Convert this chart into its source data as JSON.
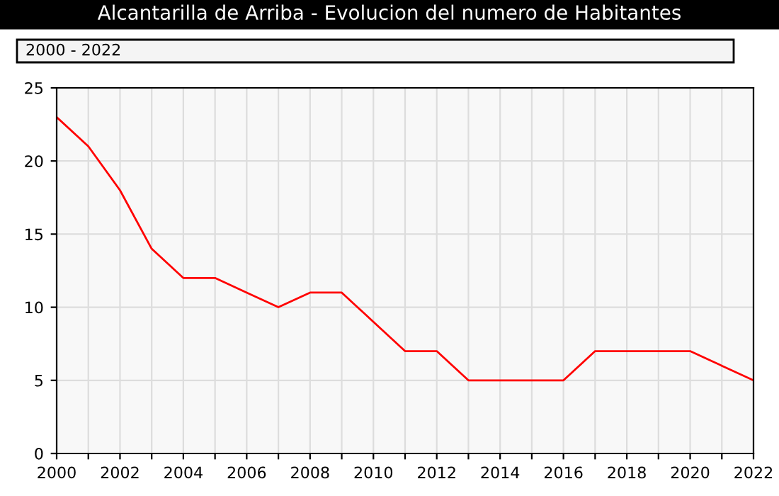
{
  "chart_data": {
    "type": "line",
    "title": "Alcantarilla de Arriba - Evolucion del numero de Habitantes",
    "annotations": [
      "2000 - 2022"
    ],
    "x": [
      2000,
      2001,
      2002,
      2003,
      2004,
      2005,
      2006,
      2007,
      2008,
      2009,
      2010,
      2011,
      2012,
      2013,
      2014,
      2015,
      2016,
      2017,
      2018,
      2019,
      2020,
      2021,
      2022
    ],
    "series": [
      {
        "color": "#ff0000",
        "values": [
          23,
          21,
          18,
          14,
          12,
          12,
          11,
          10,
          11,
          11,
          9,
          7,
          7,
          5,
          5,
          5,
          5,
          7,
          7,
          7,
          7,
          6,
          5
        ]
      }
    ],
    "xlim": [
      2000,
      2022
    ],
    "xticks": [
      2000,
      {
        "value": 2001,
        "label": null
      },
      2002,
      {
        "value": 2003,
        "label": null
      },
      2004,
      {
        "value": 2005,
        "label": null
      },
      2006,
      {
        "value": 2007,
        "label": null
      },
      2008,
      {
        "value": 2009,
        "label": null
      },
      2010,
      {
        "value": 2011,
        "label": null
      },
      2012,
      {
        "value": 2013,
        "label": null
      },
      2014,
      {
        "value": 2015,
        "label": null
      },
      2016,
      {
        "value": 2017,
        "label": null
      },
      2018,
      {
        "value": 2019,
        "label": null
      },
      2020,
      {
        "value": 2021,
        "label": null
      },
      2022
    ],
    "ylim": [
      0,
      25
    ],
    "yticks": [
      0,
      5,
      10,
      15,
      20,
      25
    ],
    "grid": true,
    "marker": "none",
    "line_style": "solid"
  }
}
